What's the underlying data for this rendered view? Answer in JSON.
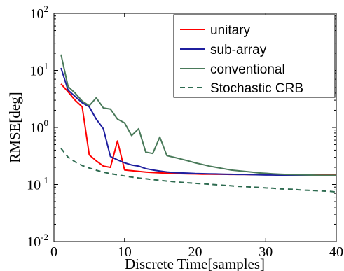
{
  "chart_data": {
    "type": "line",
    "xlabel": "Discrete Time[samples]",
    "ylabel": "RMSE[deg]",
    "xlim": [
      0,
      40
    ],
    "ylim": [
      0.01,
      100
    ],
    "yscale": "log",
    "xticks": [
      0,
      10,
      20,
      30,
      40
    ],
    "xtick_labels": [
      "0",
      "10",
      "20",
      "30",
      "40"
    ],
    "yticks": [
      {
        "value": 0.01,
        "base": "10",
        "exp": "-2"
      },
      {
        "value": 0.1,
        "base": "10",
        "exp": "-1"
      },
      {
        "value": 1,
        "base": "10",
        "exp": "0"
      },
      {
        "value": 10,
        "base": "10",
        "exp": "1"
      },
      {
        "value": 100,
        "base": "10",
        "exp": "2"
      }
    ],
    "grid": false,
    "legend_position": "top-right",
    "series": [
      {
        "name": "unitary",
        "color": "#ff0000",
        "dash": "solid",
        "x": [
          1,
          2,
          3,
          4,
          5,
          6,
          7,
          8,
          9,
          10,
          11,
          12,
          13,
          14,
          15,
          16,
          17,
          18,
          19,
          20,
          21,
          22,
          23,
          24,
          25,
          26,
          27,
          28,
          29,
          30,
          31,
          32,
          33,
          34,
          35,
          36,
          37,
          38,
          39,
          40
        ],
        "y": [
          5.8,
          4.2,
          3.0,
          2.3,
          0.33,
          0.26,
          0.21,
          0.2,
          0.58,
          0.18,
          0.175,
          0.17,
          0.165,
          0.162,
          0.16,
          0.158,
          0.156,
          0.155,
          0.154,
          0.153,
          0.152,
          0.152,
          0.151,
          0.151,
          0.15,
          0.15,
          0.15,
          0.149,
          0.149,
          0.149,
          0.148,
          0.148,
          0.148,
          0.148,
          0.148,
          0.148,
          0.148,
          0.148,
          0.148,
          0.148
        ]
      },
      {
        "name": "sub-array",
        "color": "#1f1f9f",
        "dash": "solid",
        "x": [
          1,
          2,
          3,
          4,
          5,
          6,
          7,
          8,
          9,
          10,
          11,
          12,
          13,
          14,
          15,
          16,
          17,
          18,
          19,
          20,
          21,
          22,
          23,
          24,
          25,
          26,
          27,
          28,
          29,
          30,
          31,
          32,
          33,
          34,
          35,
          36,
          37,
          38,
          39,
          40
        ],
        "y": [
          11,
          4.5,
          3.5,
          2.7,
          2.3,
          1.4,
          0.95,
          0.31,
          0.27,
          0.24,
          0.22,
          0.21,
          0.19,
          0.18,
          0.172,
          0.166,
          0.162,
          0.16,
          0.158,
          0.156,
          0.155,
          0.154,
          0.153,
          0.152,
          0.151,
          0.15,
          0.15,
          0.149,
          0.148,
          0.147,
          0.147,
          0.146,
          0.146,
          0.145,
          0.145,
          0.145,
          0.144,
          0.144,
          0.144,
          0.143
        ]
      },
      {
        "name": "conventional",
        "color": "#4a7a5a",
        "dash": "solid",
        "x": [
          1,
          2,
          3,
          4,
          5,
          6,
          7,
          8,
          9,
          10,
          11,
          12,
          13,
          14,
          15,
          16,
          17,
          18,
          19,
          20,
          21,
          22,
          23,
          24,
          25,
          26,
          27,
          28,
          29,
          30,
          31,
          32,
          33,
          34,
          35,
          36,
          37,
          38,
          39,
          40
        ],
        "y": [
          19,
          5.2,
          4.0,
          2.9,
          2.4,
          3.3,
          2.2,
          2.1,
          1.4,
          1.2,
          0.72,
          0.95,
          0.37,
          0.35,
          0.68,
          0.32,
          0.3,
          0.28,
          0.26,
          0.24,
          0.225,
          0.21,
          0.2,
          0.19,
          0.18,
          0.175,
          0.17,
          0.165,
          0.16,
          0.157,
          0.154,
          0.152,
          0.15,
          0.149,
          0.148,
          0.147,
          0.146,
          0.145,
          0.145,
          0.145
        ]
      },
      {
        "name": "Stochastic CRB",
        "color": "#2e6b50",
        "dash": "dashed",
        "x": [
          1,
          2,
          3,
          4,
          5,
          6,
          7,
          8,
          9,
          10,
          11,
          12,
          13,
          14,
          15,
          16,
          17,
          18,
          19,
          20,
          21,
          22,
          23,
          24,
          25,
          26,
          27,
          28,
          29,
          30,
          31,
          32,
          33,
          34,
          35,
          36,
          37,
          38,
          39,
          40
        ],
        "y": [
          0.43,
          0.3,
          0.25,
          0.215,
          0.195,
          0.178,
          0.165,
          0.155,
          0.148,
          0.141,
          0.135,
          0.13,
          0.126,
          0.122,
          0.118,
          0.115,
          0.112,
          0.109,
          0.107,
          0.105,
          0.103,
          0.101,
          0.099,
          0.097,
          0.095,
          0.093,
          0.092,
          0.09,
          0.089,
          0.087,
          0.086,
          0.084,
          0.083,
          0.082,
          0.08,
          0.079,
          0.078,
          0.077,
          0.076,
          0.074
        ]
      }
    ]
  }
}
